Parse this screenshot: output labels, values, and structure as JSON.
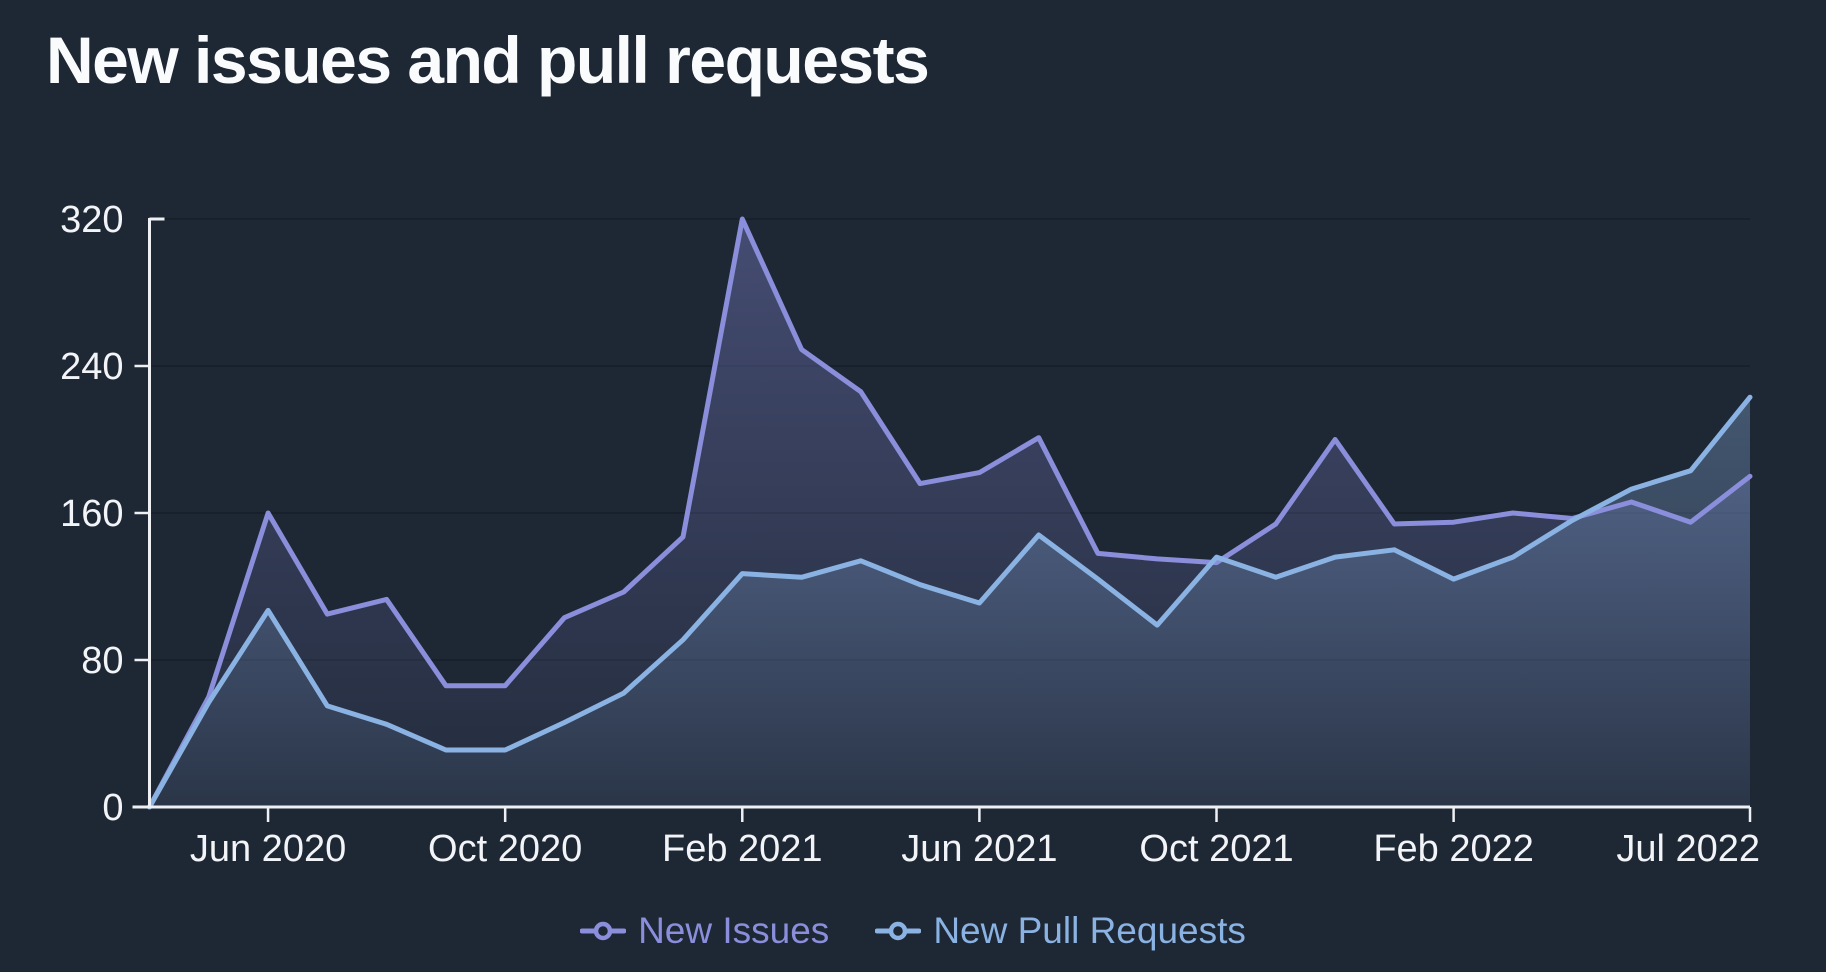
{
  "title": "New issues and pull requests",
  "colors": {
    "background": "#1e2734",
    "title_text": "#fafbfd",
    "axis_line": "#eef0f4",
    "tick_label": "#f2f4f7",
    "gridline": "#18202c",
    "issues_purple": "#8a8edb",
    "pull_requests_blue": "#8ab2e2"
  },
  "legend": {
    "items": [
      {
        "label": "New Issues",
        "color": "#8a8edb"
      },
      {
        "label": "New Pull Requests",
        "color": "#8ab2e2"
      }
    ]
  },
  "chart_data": {
    "type": "area",
    "title": "New issues and pull requests",
    "x": [
      "Apr 2020",
      "May 2020",
      "Jun 2020",
      "Jul 2020",
      "Aug 2020",
      "Sep 2020",
      "Oct 2020",
      "Nov 2020",
      "Dec 2020",
      "Jan 2021",
      "Feb 2021",
      "Mar 2021",
      "Apr 2021",
      "May 2021",
      "Jun 2021",
      "Jul 2021",
      "Aug 2021",
      "Sep 2021",
      "Oct 2021",
      "Nov 2021",
      "Dec 2021",
      "Jan 2022",
      "Feb 2022",
      "Mar 2022",
      "Apr 2022",
      "May 2022",
      "Jun 2022",
      "Jul 2022"
    ],
    "series": [
      {
        "name": "New Issues",
        "color": "#8a8edb",
        "values": [
          0,
          60,
          160,
          105,
          113,
          66,
          66,
          103,
          117,
          147,
          320,
          249,
          226,
          176,
          182,
          201,
          138,
          135,
          133,
          154,
          200,
          154,
          155,
          160,
          157,
          166,
          155,
          180
        ]
      },
      {
        "name": "New Pull Requests",
        "color": "#8ab2e2",
        "values": [
          0,
          57,
          107,
          55,
          45,
          31,
          31,
          46,
          62,
          91,
          127,
          125,
          134,
          121,
          111,
          148,
          124,
          99,
          136,
          125,
          136,
          140,
          124,
          136,
          156,
          173,
          183,
          223
        ]
      }
    ],
    "x_ticks": [
      {
        "index": 2,
        "label": "Jun 2020"
      },
      {
        "index": 6,
        "label": "Oct 2020"
      },
      {
        "index": 10,
        "label": "Feb 2021"
      },
      {
        "index": 14,
        "label": "Jun 2021"
      },
      {
        "index": 18,
        "label": "Oct 2021"
      },
      {
        "index": 22,
        "label": "Feb 2022"
      },
      {
        "index": 27,
        "label": "Jul 2022"
      }
    ],
    "y_ticks": [
      0,
      80,
      160,
      240,
      320
    ],
    "ylim": [
      0,
      320
    ],
    "xlabel": "",
    "ylabel": "",
    "grid": "horizontal",
    "legend_position": "bottom-center"
  }
}
